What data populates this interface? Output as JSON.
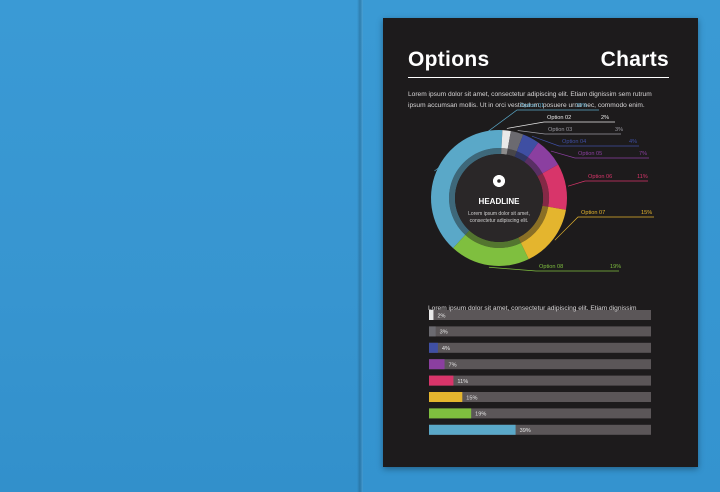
{
  "page": {
    "title_left": "Options",
    "title_right": "Charts",
    "intro": "Lorem ipsum dolor sit amet, consectetur adipiscing elit. Etiam dignissim sem rutrum ipsum accumsan mollis. Ut in orci vestibulum, posuere urna nec, commodo enim.",
    "bar_intro": "Lorem ipsum dolor sit amet, consectetur adipiscing elit. Etiam dignissim"
  },
  "donut": {
    "headline": "HEADLINE",
    "subtext": "Lorem ipsum dolor sit amet, consectetur adipiscing elit.",
    "icon": "gear-icon"
  },
  "chart_data": [
    {
      "type": "pie",
      "categories": [
        "Option 01",
        "Option 02",
        "Option 03",
        "Option 04",
        "Option 05",
        "Option 06",
        "Option 07",
        "Option 08"
      ],
      "values": [
        39,
        2,
        3,
        4,
        7,
        11,
        15,
        19
      ],
      "value_labels": [
        "39%",
        "2%",
        "3%",
        "4%",
        "7%",
        "11%",
        "15%",
        "19%"
      ],
      "colors": [
        "#5aa8c8",
        "#e9e9e9",
        "#6b6a70",
        "#3f4fa3",
        "#8b3fa0",
        "#d8356a",
        "#e4b52e",
        "#7fbf3f"
      ],
      "title": "",
      "xlabel": "",
      "ylabel": ""
    },
    {
      "type": "bar",
      "orientation": "horizontal",
      "values": [
        2,
        3,
        4,
        7,
        11,
        15,
        19,
        39
      ],
      "value_labels": [
        "2%",
        "3%",
        "4%",
        "7%",
        "11%",
        "15%",
        "19%",
        "39%"
      ],
      "colors": [
        "#e9e9e9",
        "#6b6a70",
        "#3f4fa3",
        "#8b3fa0",
        "#d8356a",
        "#e4b52e",
        "#7fbf3f",
        "#5aa8c8"
      ],
      "track_color": "#5b5658",
      "xlim": [
        0,
        100
      ],
      "title": "",
      "xlabel": "",
      "ylabel": ""
    }
  ]
}
